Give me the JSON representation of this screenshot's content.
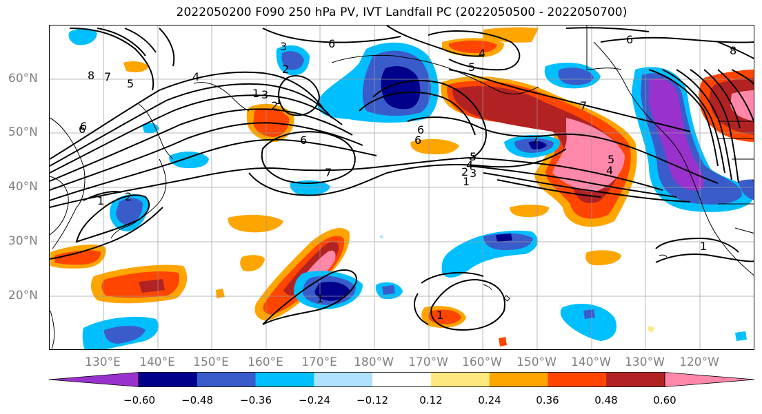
{
  "title": "2022050200 F090 250 hPa PV, IVT Landfall PC (2022050500 - 2022050700)",
  "lat_labels": [
    "60°N",
    "50°N",
    "40°N",
    "30°N",
    "20°N"
  ],
  "lon_labels": [
    "130°E",
    "140°E",
    "150°E",
    "160°E",
    "170°E",
    "180°W",
    "170°W",
    "160°W",
    "150°W",
    "140°W",
    "130°W",
    "120°W"
  ],
  "contour_labels": [
    "8",
    "7",
    "6",
    "5",
    "4",
    "6",
    "6",
    "7",
    "6",
    "5",
    "4",
    "3",
    "2",
    "1",
    "6",
    "7",
    "5",
    "7",
    "6",
    "4",
    "3",
    "2",
    "1",
    "5",
    "4",
    "3",
    "2",
    "1",
    "6",
    "8",
    "1",
    "1",
    "2",
    "1",
    "1"
  ],
  "colorbar": {
    "colors": [
      "#9932CC",
      "#00008B",
      "#3A5CCB",
      "#00BFFF",
      "#B0E2FF",
      "#FFFFFF",
      "#FFE97F",
      "#FFA500",
      "#FF4500",
      "#B22222",
      "#FF88AA"
    ],
    "ticks": [
      "−0.60",
      "−0.48",
      "−0.36",
      "−0.24",
      "−0.12",
      "0.12",
      "0.24",
      "0.36",
      "0.48",
      "0.60"
    ]
  }
}
